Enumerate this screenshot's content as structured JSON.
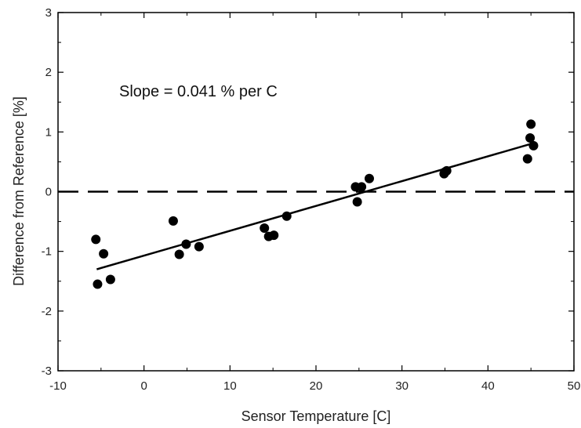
{
  "chart_data": {
    "type": "scatter",
    "title": "",
    "xlabel": "Sensor Temperature [C]",
    "ylabel": "Difference from Reference [%]",
    "xlim": [
      -10,
      50
    ],
    "ylim": [
      -3,
      3
    ],
    "xticks": [
      -10,
      0,
      10,
      20,
      30,
      40,
      50
    ],
    "yticks": [
      -3,
      -2,
      -1,
      0,
      1,
      2,
      3
    ],
    "grid": false,
    "legend": "none",
    "annotation": "Slope = 0.041 % per C",
    "reference_line": {
      "y": 0,
      "style": "dashed"
    },
    "fit_line": {
      "x": [
        -5.5,
        45.0
      ],
      "y": [
        -1.3,
        0.8
      ]
    },
    "series": [
      {
        "x": [
          -5.6,
          -5.4,
          -4.7,
          -3.9,
          3.4,
          4.1,
          4.9,
          6.4,
          14.0,
          14.5,
          15.1,
          16.6,
          24.6,
          24.8,
          25.3,
          26.2,
          34.9,
          35.0,
          35.2,
          44.6,
          44.9,
          45.0,
          45.3
        ],
        "y": [
          -0.8,
          -1.55,
          -1.04,
          -1.47,
          -0.49,
          -1.05,
          -0.88,
          -0.92,
          -0.61,
          -0.75,
          -0.73,
          -0.41,
          0.08,
          -0.17,
          0.08,
          0.22,
          0.3,
          0.33,
          0.35,
          0.55,
          0.9,
          1.13,
          0.77
        ]
      }
    ]
  }
}
